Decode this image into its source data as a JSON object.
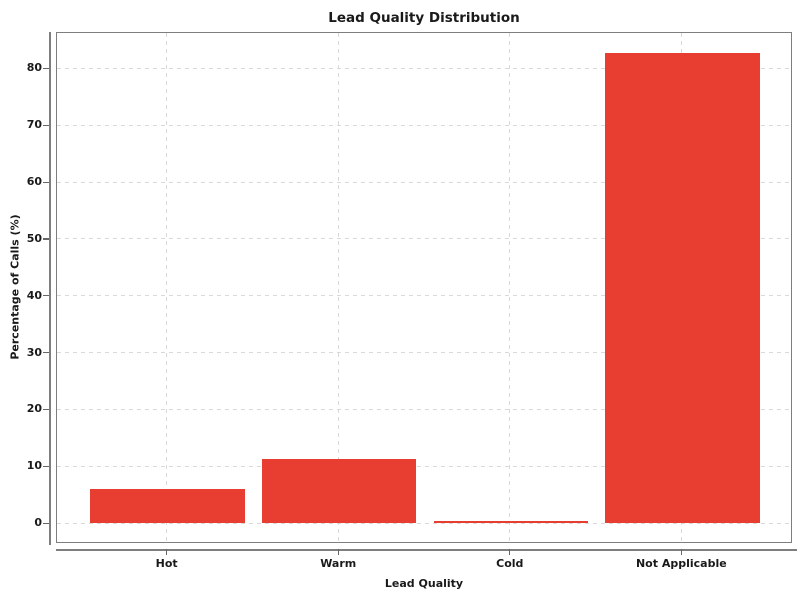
{
  "chart_data": {
    "type": "bar",
    "title": "Lead Quality Distribution",
    "xlabel": "Lead Quality",
    "ylabel": "Percentage of Calls (%)",
    "categories": [
      "Hot",
      "Warm",
      "Cold",
      "Not Applicable"
    ],
    "values": [
      5.9,
      11.2,
      0.3,
      82.6
    ],
    "yticks": [
      0,
      10,
      20,
      30,
      40,
      50,
      60,
      70,
      80
    ],
    "ylim": [
      -3.5,
      86.4
    ],
    "grid": "dashed both axes",
    "legend_position": "none",
    "bar_color": "#e83e32"
  },
  "colors": {
    "bar": "#e83e32",
    "gridline": "#d9d9d9",
    "axis_line": "#7e7e7e",
    "tick": "#666666",
    "text": "#1a1a1a",
    "background": "#ffffff"
  }
}
